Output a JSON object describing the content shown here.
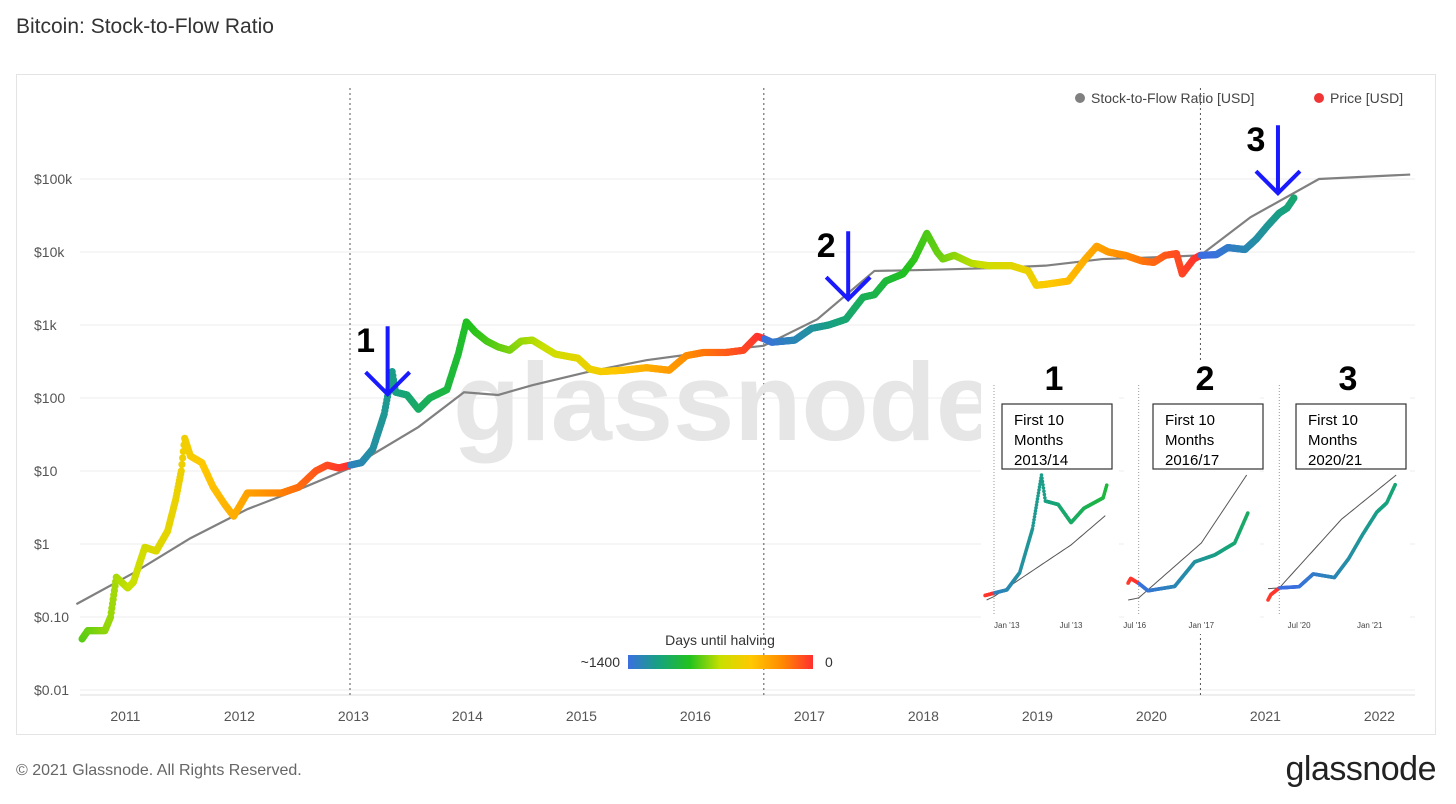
{
  "title": "Bitcoin: Stock-to-Flow Ratio",
  "footer": "© 2021 Glassnode. All Rights Reserved.",
  "logo": "glassnode",
  "watermark": "glassnode",
  "chart_data": {
    "type": "line",
    "y_scale": "log",
    "ylim": [
      0.01,
      200000
    ],
    "xlim": [
      2010.5,
      2022.2
    ],
    "grid": true,
    "legend_position": "top-right",
    "y_ticks": [
      {
        "v": 0.01,
        "label": "$0.01"
      },
      {
        "v": 0.1,
        "label": "$0.10"
      },
      {
        "v": 1,
        "label": "$1"
      },
      {
        "v": 10,
        "label": "$10"
      },
      {
        "v": 100,
        "label": "$100"
      },
      {
        "v": 1000,
        "label": "$1k"
      },
      {
        "v": 10000,
        "label": "$10k"
      },
      {
        "v": 100000,
        "label": "$100k"
      }
    ],
    "x_ticks": [
      "2011",
      "2012",
      "2013",
      "2014",
      "2015",
      "2016",
      "2017",
      "2018",
      "2019",
      "2020",
      "2021",
      "2022"
    ],
    "halvings": [
      2012.9,
      2016.53,
      2020.36
    ],
    "next_halving": 2024.3,
    "series": [
      {
        "name": "Stock-to-Flow Ratio [USD]",
        "color": "#808080",
        "points": [
          [
            2010.5,
            0.15
          ],
          [
            2011.0,
            0.4
          ],
          [
            2011.5,
            1.2
          ],
          [
            2012.0,
            3
          ],
          [
            2012.5,
            6
          ],
          [
            2012.9,
            11
          ],
          [
            2013.5,
            40
          ],
          [
            2013.9,
            120
          ],
          [
            2014.2,
            110
          ],
          [
            2014.5,
            150
          ],
          [
            2015.0,
            230
          ],
          [
            2015.5,
            330
          ],
          [
            2016.0,
            420
          ],
          [
            2016.53,
            520
          ],
          [
            2017.0,
            1200
          ],
          [
            2017.5,
            5500
          ],
          [
            2018.0,
            5700
          ],
          [
            2018.5,
            6000
          ],
          [
            2019.0,
            6500
          ],
          [
            2019.5,
            8000
          ],
          [
            2020.0,
            8500
          ],
          [
            2020.36,
            9000
          ],
          [
            2020.8,
            30000
          ],
          [
            2021.4,
            100000
          ],
          [
            2022.2,
            115000
          ]
        ]
      },
      {
        "name": "Price [USD]",
        "color": "#f03535",
        "points": [
          [
            2010.55,
            0.05
          ],
          [
            2010.6,
            0.065
          ],
          [
            2010.75,
            0.065
          ],
          [
            2010.8,
            0.1
          ],
          [
            2010.85,
            0.35
          ],
          [
            2010.95,
            0.25
          ],
          [
            2011.0,
            0.3
          ],
          [
            2011.1,
            0.9
          ],
          [
            2011.2,
            0.8
          ],
          [
            2011.3,
            1.5
          ],
          [
            2011.37,
            4
          ],
          [
            2011.42,
            10
          ],
          [
            2011.45,
            28
          ],
          [
            2011.5,
            16
          ],
          [
            2011.6,
            13
          ],
          [
            2011.7,
            6
          ],
          [
            2011.8,
            3.5
          ],
          [
            2011.88,
            2.4
          ],
          [
            2012.0,
            5
          ],
          [
            2012.1,
            5
          ],
          [
            2012.3,
            5
          ],
          [
            2012.45,
            6
          ],
          [
            2012.6,
            10
          ],
          [
            2012.7,
            12
          ],
          [
            2012.8,
            11
          ],
          [
            2012.9,
            12
          ],
          [
            2013.0,
            13
          ],
          [
            2013.1,
            20
          ],
          [
            2013.2,
            60
          ],
          [
            2013.27,
            230
          ],
          [
            2013.3,
            120
          ],
          [
            2013.4,
            110
          ],
          [
            2013.5,
            70
          ],
          [
            2013.6,
            100
          ],
          [
            2013.75,
            130
          ],
          [
            2013.85,
            400
          ],
          [
            2013.92,
            1100
          ],
          [
            2014.0,
            800
          ],
          [
            2014.1,
            600
          ],
          [
            2014.2,
            500
          ],
          [
            2014.3,
            450
          ],
          [
            2014.4,
            600
          ],
          [
            2014.5,
            620
          ],
          [
            2014.7,
            400
          ],
          [
            2014.9,
            350
          ],
          [
            2015.0,
            250
          ],
          [
            2015.1,
            230
          ],
          [
            2015.3,
            240
          ],
          [
            2015.5,
            260
          ],
          [
            2015.7,
            240
          ],
          [
            2015.85,
            380
          ],
          [
            2016.0,
            420
          ],
          [
            2016.2,
            420
          ],
          [
            2016.35,
            450
          ],
          [
            2016.47,
            700
          ],
          [
            2016.53,
            650
          ],
          [
            2016.6,
            580
          ],
          [
            2016.8,
            620
          ],
          [
            2016.95,
            900
          ],
          [
            2017.1,
            1000
          ],
          [
            2017.25,
            1200
          ],
          [
            2017.4,
            2400
          ],
          [
            2017.5,
            2600
          ],
          [
            2017.6,
            4000
          ],
          [
            2017.75,
            5000
          ],
          [
            2017.85,
            8000
          ],
          [
            2017.96,
            18000
          ],
          [
            2018.05,
            10000
          ],
          [
            2018.1,
            8000
          ],
          [
            2018.2,
            9000
          ],
          [
            2018.35,
            7000
          ],
          [
            2018.5,
            6500
          ],
          [
            2018.7,
            6500
          ],
          [
            2018.85,
            5500
          ],
          [
            2018.92,
            3500
          ],
          [
            2019.0,
            3600
          ],
          [
            2019.2,
            4000
          ],
          [
            2019.35,
            8000
          ],
          [
            2019.45,
            12000
          ],
          [
            2019.55,
            10000
          ],
          [
            2019.7,
            9000
          ],
          [
            2019.85,
            7500
          ],
          [
            2019.95,
            7200
          ],
          [
            2020.05,
            9000
          ],
          [
            2020.15,
            9500
          ],
          [
            2020.2,
            5000
          ],
          [
            2020.3,
            8000
          ],
          [
            2020.36,
            9000
          ],
          [
            2020.5,
            9200
          ],
          [
            2020.6,
            11500
          ],
          [
            2020.75,
            10800
          ],
          [
            2020.85,
            15000
          ],
          [
            2020.95,
            23000
          ],
          [
            2021.05,
            34000
          ],
          [
            2021.12,
            40000
          ],
          [
            2021.18,
            55000
          ]
        ]
      }
    ],
    "colorbar": {
      "title": "Days until halving",
      "min_label": "~1400",
      "max_label": "0",
      "max_days": 1400,
      "colors": [
        "#3b6fe0",
        "#17a27f",
        "#22c21e",
        "#c9e000",
        "#ffc800",
        "#ff8a00",
        "#ff3030"
      ]
    },
    "annotations": [
      {
        "label": "1",
        "x": 2013.23
      },
      {
        "label": "2",
        "x": 2017.27
      },
      {
        "label": "3",
        "x": 2021.04
      }
    ],
    "insets": [
      {
        "number": "1",
        "box": [
          "First 10",
          "Months",
          "2013/14"
        ],
        "range": [
          2012.83,
          2013.78
        ],
        "ticks": [
          {
            "x": 2013.0,
            "label": "Jan '13"
          },
          {
            "x": 2013.5,
            "label": "Jul '13"
          }
        ]
      },
      {
        "number": "2",
        "box": [
          "First 10",
          "Months",
          "2016/17"
        ],
        "range": [
          2016.45,
          2017.35
        ],
        "ticks": [
          {
            "x": 2016.5,
            "label": "Jul '16"
          },
          {
            "x": 2017.0,
            "label": "Jan '17"
          }
        ]
      },
      {
        "number": "3",
        "box": [
          "First 10",
          "Months",
          "2020/21"
        ],
        "range": [
          2020.28,
          2021.2
        ],
        "ticks": [
          {
            "x": 2020.5,
            "label": "Jul '20"
          },
          {
            "x": 2021.0,
            "label": "Jan '21"
          }
        ]
      }
    ]
  }
}
